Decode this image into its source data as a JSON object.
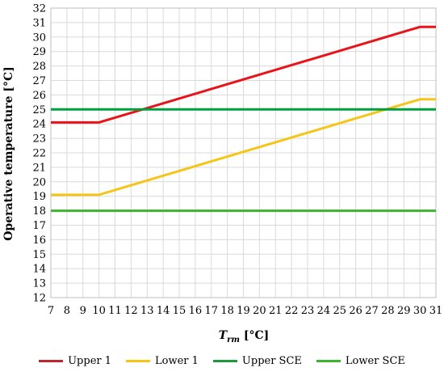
{
  "chart_data": {
    "type": "line",
    "xlabel_main": "T",
    "xlabel_sub": "rm",
    "xlabel_unit": " [°C]",
    "ylabel": "Operative temperature [°C]",
    "xlim": [
      7,
      31
    ],
    "ylim": [
      12,
      32
    ],
    "xticks": [
      "7",
      "8",
      "9",
      "10",
      "11",
      "12",
      "13",
      "14",
      "15",
      "16",
      "17",
      "18",
      "19",
      "20",
      "21",
      "22",
      "23",
      "24",
      "25",
      "26",
      "27",
      "28",
      "29",
      "30",
      "31"
    ],
    "yticks": [
      "12",
      "13",
      "14",
      "15",
      "16",
      "17",
      "18",
      "19",
      "20",
      "21",
      "22",
      "23",
      "24",
      "25",
      "26",
      "27",
      "28",
      "29",
      "30",
      "31",
      "32"
    ],
    "grid": true,
    "legend_position": "bottom",
    "series": [
      {
        "name": "Upper 1",
        "color": "#e8141a",
        "x": [
          7,
          10,
          30,
          31
        ],
        "y": [
          24.1,
          24.1,
          30.7,
          30.7
        ]
      },
      {
        "name": "Lower 1",
        "color": "#f5c518",
        "x": [
          7,
          10,
          30,
          31
        ],
        "y": [
          19.1,
          19.1,
          25.7,
          25.7
        ]
      },
      {
        "name": "Upper SCE",
        "color": "#00a03c",
        "x": [
          7,
          31
        ],
        "y": [
          25,
          25
        ]
      },
      {
        "name": "Lower SCE",
        "color": "#3cb532",
        "x": [
          7,
          31
        ],
        "y": [
          18,
          18
        ]
      }
    ]
  },
  "legend_items": [
    {
      "label": "Upper 1",
      "color": "#c0262d"
    },
    {
      "label": "Lower 1",
      "color": "#f5c518"
    },
    {
      "label": "Upper SCE",
      "color": "#1f9a3a"
    },
    {
      "label": "Lower SCE",
      "color": "#3cb532"
    }
  ]
}
